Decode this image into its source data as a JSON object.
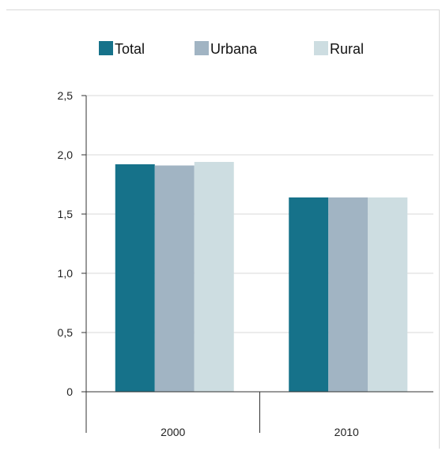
{
  "chart_data": {
    "type": "bar",
    "categories": [
      "2000",
      "2010"
    ],
    "series": [
      {
        "name": "Total",
        "color": "#16728a",
        "values": [
          1.92,
          1.64
        ]
      },
      {
        "name": "Urbana",
        "color": "#a1b4c3",
        "values": [
          1.91,
          1.64
        ]
      },
      {
        "name": "Rural",
        "color": "#cddde1",
        "values": [
          1.94,
          1.64
        ]
      }
    ],
    "ylim": [
      0,
      2.5
    ],
    "yticks": [
      {
        "value": 0,
        "label": "0"
      },
      {
        "value": 0.5,
        "label": "0,5"
      },
      {
        "value": 1.0,
        "label": "1,0"
      },
      {
        "value": 1.5,
        "label": "1,5"
      },
      {
        "value": 2.0,
        "label": "2,0"
      },
      {
        "value": 2.5,
        "label": "2,5"
      }
    ],
    "grid": true,
    "legend_position": "top"
  }
}
